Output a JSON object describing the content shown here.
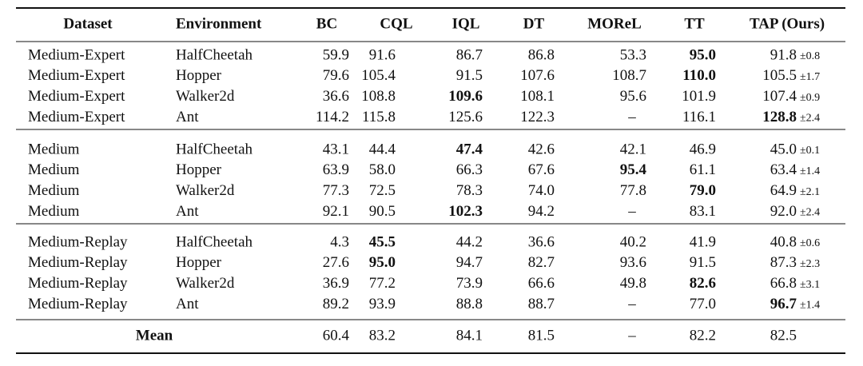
{
  "table": {
    "header": [
      "Dataset",
      "Environment",
      "BC",
      "CQL",
      "IQL",
      "DT",
      "MOReL",
      "TT",
      "TAP (Ours)"
    ],
    "groups": [
      {
        "rows": [
          [
            "Medium-Expert",
            "HalfCheetah",
            "59.9",
            "91.6",
            "86.7",
            "86.8",
            "53.3",
            {
              "text": "95.0",
              "bold": true
            },
            {
              "text": "91.8",
              "std": "±0.8"
            }
          ],
          [
            "Medium-Expert",
            "Hopper",
            "79.6",
            "105.4",
            "91.5",
            "107.6",
            "108.7",
            {
              "text": "110.0",
              "bold": true
            },
            {
              "text": "105.5",
              "std": "±1.7"
            }
          ],
          [
            "Medium-Expert",
            "Walker2d",
            "36.6",
            "108.8",
            {
              "text": "109.6",
              "bold": true
            },
            "108.1",
            "95.6",
            "101.9",
            {
              "text": "107.4",
              "std": "±0.9"
            }
          ],
          [
            "Medium-Expert",
            "Ant",
            "114.2",
            "115.8",
            "125.6",
            "122.3",
            "–",
            "116.1",
            {
              "text": "128.8",
              "std": "±2.4",
              "bold": true
            }
          ]
        ]
      },
      {
        "rows": [
          [
            "Medium",
            "HalfCheetah",
            "43.1",
            "44.4",
            {
              "text": "47.4",
              "bold": true
            },
            "42.6",
            "42.1",
            "46.9",
            {
              "text": "45.0",
              "std": "±0.1"
            }
          ],
          [
            "Medium",
            "Hopper",
            "63.9",
            "58.0",
            "66.3",
            "67.6",
            {
              "text": "95.4",
              "bold": true
            },
            "61.1",
            {
              "text": "63.4",
              "std": "±1.4"
            }
          ],
          [
            "Medium",
            "Walker2d",
            "77.3",
            "72.5",
            "78.3",
            "74.0",
            "77.8",
            {
              "text": "79.0",
              "bold": true
            },
            {
              "text": "64.9",
              "std": "±2.1"
            }
          ],
          [
            "Medium",
            "Ant",
            "92.1",
            "90.5",
            {
              "text": "102.3",
              "bold": true
            },
            "94.2",
            "–",
            "83.1",
            {
              "text": "92.0",
              "std": "±2.4"
            }
          ]
        ]
      },
      {
        "rows": [
          [
            "Medium-Replay",
            "HalfCheetah",
            "4.3",
            {
              "text": "45.5",
              "bold": true
            },
            "44.2",
            "36.6",
            "40.2",
            "41.9",
            {
              "text": "40.8",
              "std": "±0.6"
            }
          ],
          [
            "Medium-Replay",
            "Hopper",
            "27.6",
            {
              "text": "95.0",
              "bold": true
            },
            "94.7",
            "82.7",
            "93.6",
            "91.5",
            {
              "text": "87.3",
              "std": "±2.3"
            }
          ],
          [
            "Medium-Replay",
            "Walker2d",
            "36.9",
            "77.2",
            "73.9",
            "66.6",
            "49.8",
            {
              "text": "82.6",
              "bold": true
            },
            {
              "text": "66.8",
              "std": "±3.1"
            }
          ],
          [
            "Medium-Replay",
            "Ant",
            "89.2",
            "93.9",
            "88.8",
            "88.7",
            "–",
            "77.0",
            {
              "text": "96.7",
              "std": "±1.4",
              "bold": true
            }
          ]
        ]
      }
    ],
    "mean": {
      "label": "Mean",
      "values": [
        "60.4",
        "83.2",
        "84.1",
        "81.5",
        "–",
        "82.2",
        "82.5"
      ]
    }
  }
}
